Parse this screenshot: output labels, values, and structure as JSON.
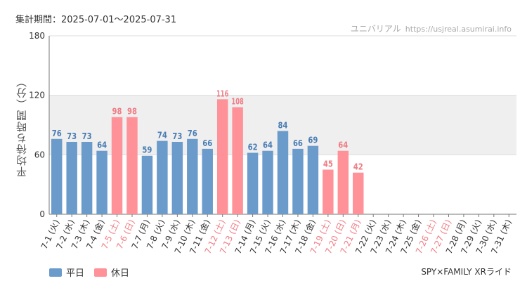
{
  "header": {
    "period": "集計期間：2025-07-01〜2025-07-31",
    "source_name": "ユニバリアル",
    "source_url": "https://usjreal.asumirai.info"
  },
  "footer": {
    "ride_name": "SPY×FAMILY XRライド"
  },
  "colors": {
    "weekday": "#6b9bcb",
    "holiday": "#ff9199",
    "weekday_text": "#4a7db4",
    "holiday_text": "#f07c84",
    "band": "#efefef"
  },
  "chart_data": {
    "type": "bar",
    "title": "",
    "ylabel": "平均待ち時間（分）",
    "xlabel": "",
    "ylim": [
      0,
      180
    ],
    "yticks": [
      0,
      60,
      120,
      180
    ],
    "grid": true,
    "shaded_band": [
      60,
      120
    ],
    "legend": [
      {
        "name": "平日",
        "kind": "weekday"
      },
      {
        "name": "休日",
        "kind": "holiday"
      }
    ],
    "legend_position": "bottom-left",
    "categories": [
      "7-1 (火)",
      "7-2 (水)",
      "7-3 (木)",
      "7-4 (金)",
      "7-5 (土)",
      "7-6 (日)",
      "7-7 (月)",
      "7-8 (火)",
      "7-9 (水)",
      "7-10 (木)",
      "7-11 (金)",
      "7-12 (土)",
      "7-13 (日)",
      "7-14 (月)",
      "7-15 (火)",
      "7-16 (水)",
      "7-17 (木)",
      "7-18 (金)",
      "7-19 (土)",
      "7-20 (日)",
      "7-21 (月)",
      "7-22 (火)",
      "7-23 (水)",
      "7-24 (木)",
      "7-25 (金)",
      "7-26 (土)",
      "7-27 (日)",
      "7-28 (月)",
      "7-29 (火)",
      "7-30 (水)",
      "7-31 (木)"
    ],
    "day_kind": [
      "weekday",
      "weekday",
      "weekday",
      "weekday",
      "holiday",
      "holiday",
      "weekday",
      "weekday",
      "weekday",
      "weekday",
      "weekday",
      "holiday",
      "holiday",
      "weekday",
      "weekday",
      "weekday",
      "weekday",
      "weekday",
      "holiday",
      "holiday",
      "holiday",
      "weekday",
      "weekday",
      "weekday",
      "weekday",
      "holiday",
      "holiday",
      "weekday",
      "weekday",
      "weekday",
      "weekday"
    ],
    "values": [
      76,
      73,
      73,
      64,
      98,
      98,
      59,
      74,
      73,
      76,
      66,
      116,
      108,
      62,
      64,
      84,
      66,
      69,
      45,
      64,
      42,
      null,
      null,
      null,
      null,
      null,
      null,
      null,
      null,
      null,
      null
    ]
  }
}
